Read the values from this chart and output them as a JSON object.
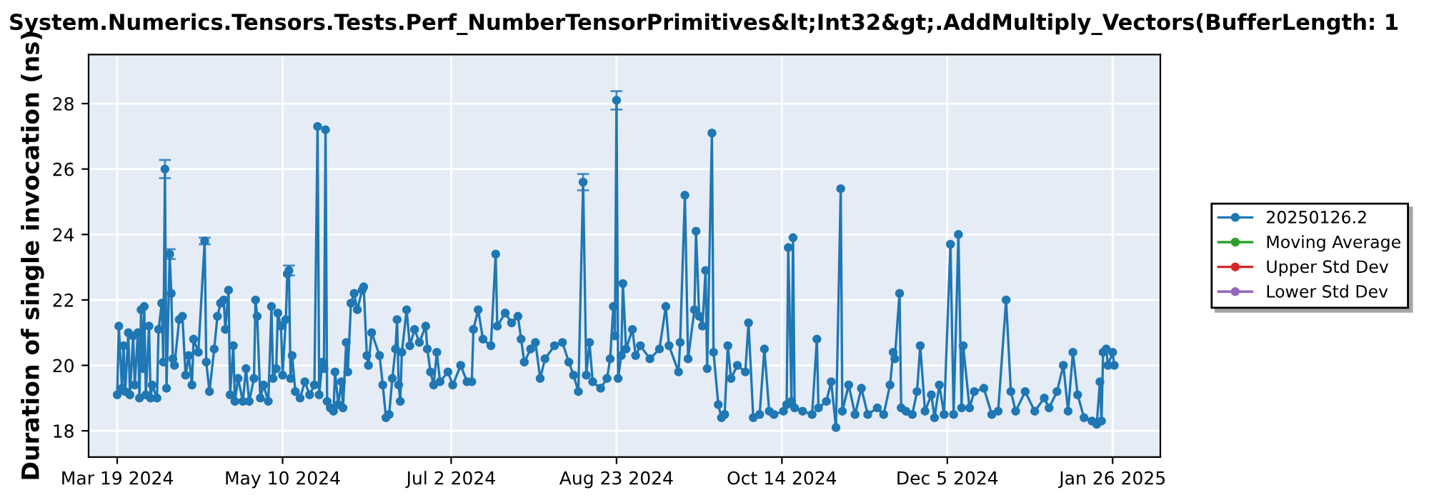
{
  "chart_data": {
    "type": "line",
    "title": "System.Numerics.Tensors.Tests.Perf_NumberTensorPrimitives&lt;Int32&gt;.AddMultiply_Vectors(BufferLength: 1",
    "ylabel": "Duration of single invocation (ns)",
    "xlim": [
      "2024-03-10",
      "2025-02-10"
    ],
    "xticks": [
      {
        "value": "2024-03-19",
        "label": "Mar 19 2024"
      },
      {
        "value": "2024-05-10",
        "label": "May 10 2024"
      },
      {
        "value": "2024-07-02",
        "label": "Jul 2 2024"
      },
      {
        "value": "2024-08-23",
        "label": "Aug 23 2024"
      },
      {
        "value": "2024-10-14",
        "label": "Oct 14 2024"
      },
      {
        "value": "2024-12-05",
        "label": "Dec 5 2024"
      },
      {
        "value": "2025-01-26",
        "label": "Jan 26 2025"
      }
    ],
    "ylim": [
      17.2,
      29.5
    ],
    "yticks": [
      18,
      20,
      22,
      24,
      26,
      28
    ],
    "grid": true,
    "legend": "right",
    "marker": "circle",
    "line_style": "solid",
    "series": [
      {
        "name": "20250126.2",
        "color": "#1f77b4",
        "x": [
          "2024-03-19",
          "2024-03-19T12:00",
          "2024-03-20T12:00",
          "2024-03-21",
          "2024-03-21T12:00",
          "2024-03-22T12:00",
          "2024-03-23",
          "2024-03-24",
          "2024-03-24T12:00",
          "2024-03-25T12:00",
          "2024-03-26",
          "2024-03-26T12:00",
          "2024-03-27",
          "2024-03-27T12:00",
          "2024-03-28",
          "2024-03-29",
          "2024-03-29T12:00",
          "2024-03-30",
          "2024-03-31T12:00",
          "2024-04-01",
          "2024-04-02",
          "2024-04-02T12:00",
          "2024-04-03",
          "2024-04-03T12:00",
          "2024-04-04T12:00",
          "2024-04-05",
          "2024-04-05T12:00",
          "2024-04-06",
          "2024-04-07T12:00",
          "2024-04-08T12:00",
          "2024-04-09T12:00",
          "2024-04-10T12:00",
          "2024-04-11T12:00",
          "2024-04-12",
          "2024-04-13T12:00",
          "2024-04-15T12:00",
          "2024-04-16",
          "2024-04-17",
          "2024-04-18T12:00",
          "2024-04-19T12:00",
          "2024-04-20T12:00",
          "2024-04-21T12:00",
          "2024-04-22",
          "2024-04-23",
          "2024-04-23T12:00",
          "2024-04-24T12:00",
          "2024-04-25",
          "2024-04-26",
          "2024-04-27T12:00",
          "2024-04-28T12:00",
          "2024-04-29T12:00",
          "2024-05-01",
          "2024-05-01T12:00",
          "2024-05-02",
          "2024-05-03",
          "2024-05-04",
          "2024-05-05T12:00",
          "2024-05-06T12:00",
          "2024-05-07",
          "2024-05-08",
          "2024-05-08T12:00",
          "2024-05-09T12:00",
          "2024-05-10",
          "2024-05-11",
          "2024-05-11T12:00",
          "2024-05-12",
          "2024-05-12T12:00",
          "2024-05-13",
          "2024-05-14",
          "2024-05-15T12:00",
          "2024-05-17",
          "2024-05-18T12:00",
          "2024-05-20",
          "2024-05-21",
          "2024-05-21T12:00",
          "2024-05-22T12:00",
          "2024-05-23",
          "2024-05-23T12:00",
          "2024-05-24",
          "2024-05-25",
          "2024-05-26",
          "2024-05-26T12:00",
          "2024-05-27T12:00",
          "2024-05-28T12:00",
          "2024-05-29",
          "2024-05-30",
          "2024-05-30T12:00",
          "2024-05-31T12:00",
          "2024-06-01T12:00",
          "2024-06-02T12:00",
          "2024-06-04",
          "2024-06-04T12:00",
          "2024-06-05T12:00",
          "2024-06-06",
          "2024-06-07",
          "2024-06-09T12:00",
          "2024-06-10T12:00",
          "2024-06-11T12:00",
          "2024-06-12T12:00",
          "2024-06-13T12:00",
          "2024-06-14T12:00",
          "2024-06-15",
          "2024-06-15T12:00",
          "2024-06-16",
          "2024-06-16T12:00",
          "2024-06-18",
          "2024-06-19",
          "2024-06-20T12:00",
          "2024-06-22",
          "2024-06-24",
          "2024-06-24T12:00",
          "2024-06-25T12:00",
          "2024-06-26T12:00",
          "2024-06-27T12:00",
          "2024-06-28T12:00",
          "2024-07-01",
          "2024-07-02T12:00",
          "2024-07-05",
          "2024-07-07",
          "2024-07-08T12:00",
          "2024-07-09",
          "2024-07-10T12:00",
          "2024-07-12",
          "2024-07-14T12:00",
          "2024-07-16",
          "2024-07-16T12:00",
          "2024-07-19",
          "2024-07-21",
          "2024-07-23",
          "2024-07-24",
          "2024-07-25",
          "2024-07-27",
          "2024-07-28T12:00",
          "2024-07-30",
          "2024-07-31T12:00",
          "2024-08-03T12:00",
          "2024-08-06",
          "2024-08-08",
          "2024-08-09T12:00",
          "2024-08-11",
          "2024-08-12T12:00",
          "2024-08-13T12:00",
          "2024-08-14T12:00",
          "2024-08-15T12:00",
          "2024-08-18",
          "2024-08-20",
          "2024-08-21",
          "2024-08-22",
          "2024-08-22T12:00",
          "2024-08-23",
          "2024-08-23T12:00",
          "2024-08-24T12:00",
          "2024-08-25",
          "2024-08-26",
          "2024-08-28",
          "2024-08-29",
          "2024-08-30T12:00",
          "2024-09-02T12:00",
          "2024-09-05T12:00",
          "2024-09-07T12:00",
          "2024-09-08T12:00",
          "2024-09-11T12:00",
          "2024-09-12",
          "2024-09-13T12:00",
          "2024-09-14T12:00",
          "2024-09-16T12:00",
          "2024-09-17",
          "2024-09-18",
          "2024-09-19",
          "2024-09-20",
          "2024-09-20T12:00",
          "2024-09-22",
          "2024-09-22T12:00",
          "2024-09-24",
          "2024-09-25",
          "2024-09-26",
          "2024-09-27",
          "2024-09-28",
          "2024-09-30",
          "2024-10-02T12:00",
          "2024-10-03T12:00",
          "2024-10-05",
          "2024-10-07",
          "2024-10-08T12:00",
          "2024-10-10",
          "2024-10-11T12:00",
          "2024-10-14T12:00",
          "2024-10-15T12:00",
          "2024-10-16",
          "2024-10-17",
          "2024-10-17T12:00",
          "2024-10-18",
          "2024-10-20T12:00",
          "2024-10-23T12:00",
          "2024-10-25",
          "2024-10-25T12:00",
          "2024-10-28",
          "2024-10-29T12:00",
          "2024-10-31",
          "2024-11-01T12:00",
          "2024-11-02",
          "2024-11-04",
          "2024-11-06",
          "2024-11-08",
          "2024-11-10",
          "2024-11-13",
          "2024-11-15",
          "2024-11-17",
          "2024-11-18",
          "2024-11-18T12:00",
          "2024-11-20",
          "2024-11-20T12:00",
          "2024-11-22",
          "2024-11-24",
          "2024-11-25T12:00",
          "2024-11-26T12:00",
          "2024-11-28",
          "2024-11-30",
          "2024-12-01",
          "2024-12-02T12:00",
          "2024-12-04",
          "2024-12-06",
          "2024-12-07",
          "2024-12-08T12:00",
          "2024-12-09T12:00",
          "2024-12-10",
          "2024-12-12",
          "2024-12-13T12:00",
          "2024-12-16T12:00",
          "2024-12-19",
          "2024-12-21",
          "2024-12-23T12:00",
          "2024-12-25",
          "2024-12-26T12:00",
          "2024-12-29T12:00",
          "2025-01-01T12:00",
          "2025-01-04T12:00",
          "2025-01-06",
          "2025-01-08T12:00",
          "2025-01-10T12:00",
          "2025-01-12",
          "2025-01-13T12:00",
          "2025-01-15",
          "2025-01-17",
          "2025-01-19T12:00",
          "2025-01-21",
          "2025-01-22",
          "2025-01-22T12:00",
          "2025-01-23",
          "2025-01-24",
          "2025-01-24T12:00",
          "2025-01-26",
          "2025-01-26T12:00"
        ],
        "values": [
          19.1,
          21.2,
          19.3,
          20.6,
          19.2,
          21.0,
          19.1,
          20.9,
          19.4,
          21.0,
          19.0,
          21.7,
          19.9,
          21.8,
          19.1,
          21.2,
          19.0,
          19.4,
          19.0,
          21.1,
          21.9,
          20.1,
          26.0,
          19.3,
          23.4,
          22.2,
          20.2,
          20.0,
          21.4,
          21.5,
          19.7,
          20.3,
          19.4,
          20.8,
          20.4,
          23.8,
          20.1,
          19.2,
          20.5,
          21.5,
          21.9,
          22.0,
          21.1,
          22.3,
          19.1,
          20.6,
          18.9,
          19.6,
          18.9,
          19.9,
          18.9,
          19.6,
          22.0,
          21.5,
          19.0,
          19.4,
          18.9,
          21.8,
          19.6,
          19.9,
          21.6,
          21.2,
          19.7,
          21.4,
          22.8,
          22.9,
          19.6,
          20.3,
          19.2,
          19.0,
          19.5,
          19.1,
          19.4,
          27.3,
          19.1,
          20.1,
          19.9,
          27.2,
          18.9,
          18.7,
          18.6,
          19.8,
          18.8,
          19.5,
          18.7,
          20.7,
          19.8,
          21.9,
          22.2,
          21.7,
          22.3,
          22.4,
          20.3,
          20.0,
          21.0,
          20.3,
          19.4,
          18.4,
          18.5,
          19.6,
          20.5,
          21.4,
          19.4,
          18.9,
          20.4,
          21.7,
          20.6,
          21.1,
          20.7,
          21.2,
          20.5,
          19.8,
          19.4,
          20.4,
          19.5,
          19.8,
          19.4,
          20.0,
          19.5,
          19.5,
          21.1,
          21.7,
          20.8,
          20.6,
          23.4,
          21.2,
          21.6,
          21.3,
          21.5,
          20.8,
          20.1,
          20.5,
          20.7,
          19.6,
          20.2,
          20.6,
          20.7,
          20.1,
          19.7,
          19.2,
          25.6,
          19.7,
          20.7,
          19.5,
          19.3,
          19.6,
          20.2,
          21.8,
          20.9,
          28.1,
          19.6,
          20.3,
          22.5,
          20.5,
          21.1,
          20.3,
          20.6,
          20.2,
          20.5,
          21.8,
          20.6,
          19.8,
          20.7,
          25.2,
          20.2,
          21.7,
          24.1,
          21.5,
          21.2,
          22.9,
          19.9,
          27.1,
          20.4,
          18.8,
          18.4,
          18.5,
          20.6,
          19.6,
          20.0,
          19.8,
          21.3,
          18.4,
          18.5,
          20.5,
          18.6,
          18.5,
          18.6,
          18.8,
          23.6,
          18.9,
          23.9,
          18.7,
          18.6,
          18.5,
          20.8,
          18.7,
          18.9,
          19.5,
          18.1,
          25.4,
          18.6,
          19.4,
          18.5,
          19.3,
          18.5,
          18.7,
          18.5,
          19.4,
          20.4,
          20.2,
          22.2,
          18.7,
          18.6,
          18.5,
          19.2,
          20.6,
          18.6,
          19.1,
          18.4,
          19.4,
          18.5,
          23.7,
          18.5,
          24.0,
          18.7,
          20.6,
          18.7,
          19.2,
          19.3,
          18.5,
          18.6,
          22.0,
          19.2,
          18.6,
          19.2,
          18.6,
          19.0,
          18.7,
          19.2,
          20.0,
          18.6,
          20.4,
          19.1,
          18.4,
          18.3,
          18.2,
          19.5,
          18.3,
          20.4,
          20.5,
          20.0,
          20.4,
          20.0
        ],
        "errors": [
          null,
          null,
          null,
          null,
          null,
          null,
          null,
          null,
          null,
          null,
          null,
          null,
          null,
          null,
          null,
          null,
          null,
          null,
          null,
          null,
          null,
          null,
          0.28,
          null,
          0.15,
          null,
          null,
          null,
          null,
          null,
          null,
          null,
          null,
          null,
          null,
          0.1,
          null,
          null,
          null,
          null,
          null,
          null,
          null,
          null,
          null,
          null,
          null,
          null,
          null,
          null,
          null,
          null,
          null,
          null,
          null,
          null,
          null,
          null,
          null,
          null,
          null,
          null,
          null,
          null,
          null,
          0.15,
          null,
          null,
          null,
          null,
          null,
          null,
          null,
          null,
          null,
          null,
          null,
          null,
          null,
          null,
          null,
          null,
          null,
          null,
          null,
          null,
          null,
          null,
          null,
          null,
          null,
          null,
          null,
          null,
          null,
          null,
          null,
          null,
          null,
          null,
          null,
          null,
          null,
          null,
          null,
          null,
          null,
          null,
          null,
          null,
          null,
          null,
          null,
          null,
          null,
          null,
          null,
          null,
          null,
          null,
          null,
          null,
          null,
          null,
          null,
          null,
          null,
          null,
          null,
          null,
          null,
          null,
          null,
          null,
          null,
          null,
          null,
          null,
          null,
          null,
          0.25,
          null,
          null,
          null,
          null,
          null,
          null,
          null,
          null,
          0.28,
          null,
          null,
          null,
          null,
          null,
          null,
          null,
          null,
          null,
          null,
          null,
          null,
          null,
          null,
          null,
          null,
          null,
          null,
          null,
          null,
          null,
          null,
          null,
          null,
          null,
          null,
          null,
          null,
          null,
          null,
          null,
          null,
          null,
          null,
          null,
          null,
          null,
          null,
          null,
          null,
          null,
          null,
          null,
          null,
          null,
          null,
          null,
          null,
          null,
          null,
          null,
          null,
          null,
          null,
          null,
          null,
          null,
          null,
          null,
          null,
          null,
          null,
          null,
          null,
          null,
          null,
          null,
          null,
          null,
          null,
          null,
          null,
          null,
          null,
          null,
          null,
          null,
          null,
          null,
          null,
          null,
          null,
          null,
          null,
          null,
          null,
          null,
          null,
          null,
          null,
          null,
          null,
          null,
          null,
          null,
          null,
          null,
          null,
          null,
          null,
          null,
          null,
          null
        ]
      },
      {
        "name": "Moving Average",
        "color": "#2ca02c"
      },
      {
        "name": "Upper Std Dev",
        "color": "#d62728"
      },
      {
        "name": "Lower Std Dev",
        "color": "#9467bd"
      }
    ]
  }
}
